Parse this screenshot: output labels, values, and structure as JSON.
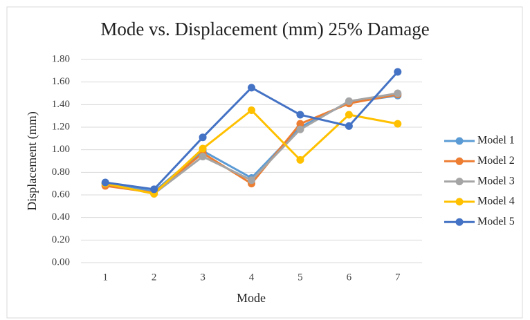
{
  "chart_data": {
    "type": "line",
    "title": "Mode vs. Displacement  (mm) 25% Damage",
    "xlabel": "Mode",
    "ylabel": "Displacement (mm)",
    "categories": [
      1,
      2,
      3,
      4,
      5,
      6,
      7
    ],
    "series": [
      {
        "name": "Model 1",
        "color": "#5b9bd5",
        "values": [
          0.7,
          0.63,
          0.99,
          0.75,
          1.2,
          1.42,
          1.48
        ]
      },
      {
        "name": "Model 2",
        "color": "#ed7d31",
        "values": [
          0.68,
          0.62,
          0.97,
          0.7,
          1.23,
          1.41,
          1.49
        ]
      },
      {
        "name": "Model 3",
        "color": "#a5a5a5",
        "values": [
          0.7,
          0.61,
          0.94,
          0.73,
          1.18,
          1.43,
          1.5
        ]
      },
      {
        "name": "Model 4",
        "color": "#ffc000",
        "values": [
          0.7,
          0.61,
          1.01,
          1.35,
          0.91,
          1.31,
          1.23
        ]
      },
      {
        "name": "Model 5",
        "color": "#4472c4",
        "values": [
          0.71,
          0.65,
          1.11,
          1.55,
          1.31,
          1.21,
          1.69
        ]
      }
    ],
    "ylim": [
      0,
      1.8
    ],
    "yticks": [
      {
        "value": 0,
        "label": "0.00"
      },
      {
        "value": 0.2,
        "label": "0.20"
      },
      {
        "value": 0.4,
        "label": "0.40"
      },
      {
        "value": 0.6,
        "label": "0.60"
      },
      {
        "value": 0.8,
        "label": "0.80"
      },
      {
        "value": 1.0,
        "label": "1.00"
      },
      {
        "value": 1.2,
        "label": "1.20"
      },
      {
        "value": 1.4,
        "label": "1.40"
      },
      {
        "value": 1.6,
        "label": "1.60"
      },
      {
        "value": 1.8,
        "label": "1.80"
      }
    ],
    "grid": true,
    "legend": "right"
  }
}
